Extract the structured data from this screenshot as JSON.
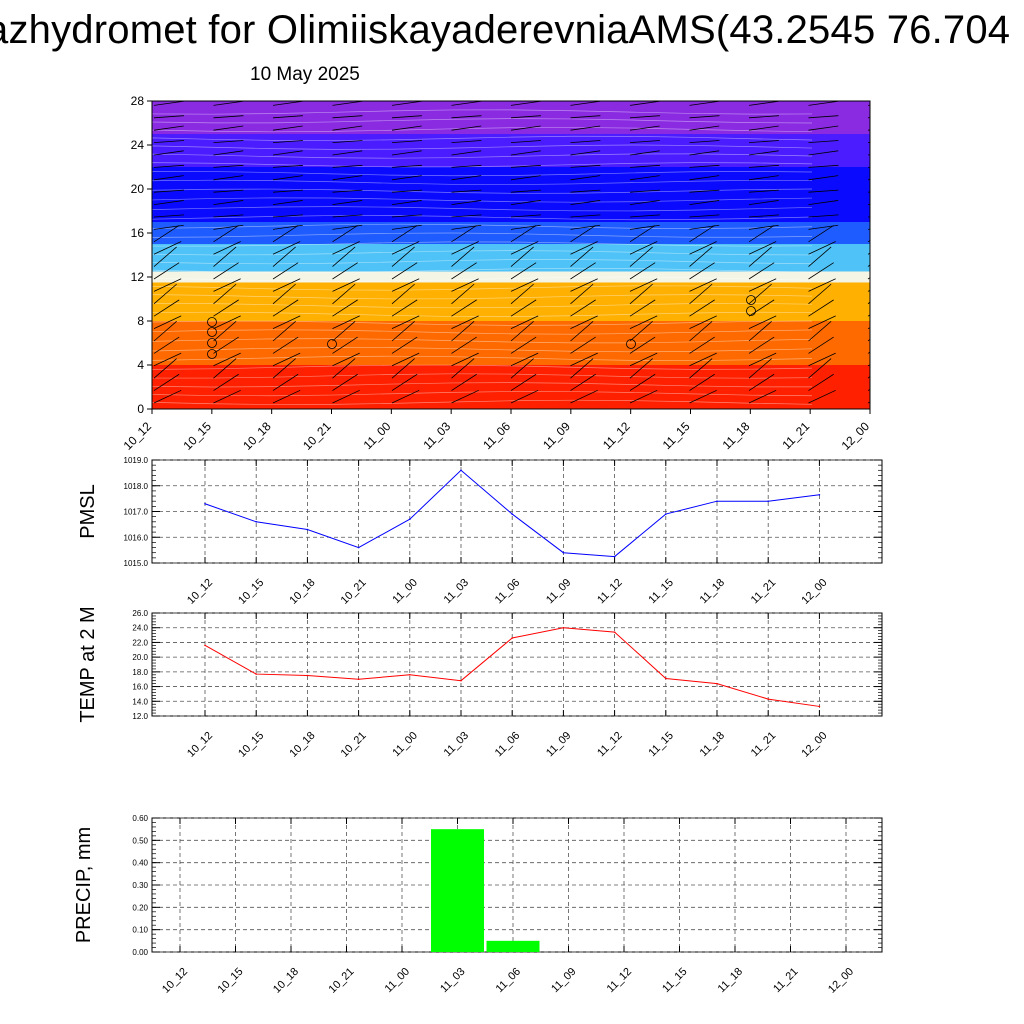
{
  "title": "azhydromet for OlimiiskayaderevniaAMS(43.2545 76.704",
  "subtitle": "10 May 2025",
  "time_labels": [
    "10_12",
    "10_15",
    "10_18",
    "10_21",
    "11_00",
    "11_03",
    "11_06",
    "11_09",
    "11_12",
    "11_15",
    "11_18",
    "11_21",
    "12_00"
  ],
  "chart_data": [
    {
      "type": "heatmap",
      "title": "",
      "xlabel": "",
      "ylabel": "",
      "y_ticks": [
        "0",
        "4",
        "8",
        "12",
        "16",
        "20",
        "24",
        "28"
      ],
      "ylim": [
        0,
        28
      ],
      "color_bands": [
        {
          "from": 0,
          "to": 4,
          "color": "#ff2000"
        },
        {
          "from": 4,
          "to": 8,
          "color": "#ff6a00"
        },
        {
          "from": 8,
          "to": 11.5,
          "color": "#ffb000"
        },
        {
          "from": 11.5,
          "to": 12.5,
          "color": "#f5f5e6"
        },
        {
          "from": 12.5,
          "to": 15,
          "color": "#4fc3f7"
        },
        {
          "from": 15,
          "to": 17,
          "color": "#1f5cff"
        },
        {
          "from": 17,
          "to": 22,
          "color": "#0a0aff"
        },
        {
          "from": 22,
          "to": 25,
          "color": "#4a1cff"
        },
        {
          "from": 25,
          "to": 28,
          "color": "#8a2be2"
        }
      ]
    },
    {
      "type": "line",
      "ylabel": "PMSL",
      "ylim": [
        1015.0,
        1019.0
      ],
      "y_ticks": [
        "1015.0",
        "1016.0",
        "1017.0",
        "1018.0",
        "1019.0"
      ],
      "color": "#0000ff",
      "values": [
        1017.3,
        1016.6,
        1016.3,
        1015.6,
        1016.7,
        1018.6,
        1016.9,
        1015.4,
        1015.25,
        1016.9,
        1017.4,
        1017.4,
        1017.65
      ]
    },
    {
      "type": "line",
      "ylabel": "TEMP at 2 M",
      "ylim": [
        12.0,
        26.0
      ],
      "y_ticks": [
        "12.0",
        "14.0",
        "16.0",
        "18.0",
        "20.0",
        "22.0",
        "24.0",
        "26.0"
      ],
      "color": "#ff0000",
      "values": [
        21.6,
        17.7,
        17.5,
        17.0,
        17.6,
        16.8,
        22.6,
        24.0,
        23.4,
        17.1,
        16.4,
        14.3,
        13.3
      ]
    },
    {
      "type": "bar",
      "ylabel": "PRECIP, mm",
      "ylim": [
        0,
        0.6
      ],
      "y_ticks": [
        "0.00",
        "0.10",
        "0.20",
        "0.30",
        "0.40",
        "0.50",
        "0.60"
      ],
      "color": "#00ff00",
      "values": [
        0,
        0,
        0,
        0,
        0,
        0.55,
        0.05,
        0,
        0,
        0,
        0,
        0,
        0
      ]
    }
  ]
}
